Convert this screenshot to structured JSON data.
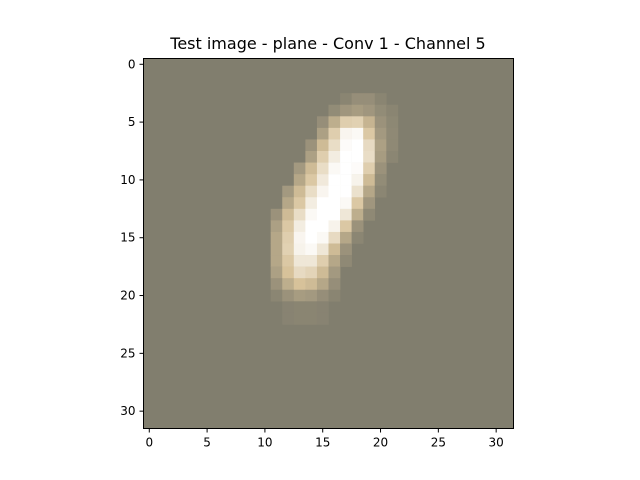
{
  "chart_data": {
    "type": "heatmap",
    "title": "Test image - plane - Conv 1 - Channel 5",
    "xlabel": "",
    "ylabel": "",
    "rows": 32,
    "cols": 32,
    "xlim": [
      -0.5,
      31.5
    ],
    "ylim": [
      31.5,
      -0.5
    ],
    "x_ticks": [
      0,
      5,
      10,
      15,
      20,
      25,
      30
    ],
    "y_ticks": [
      0,
      5,
      10,
      15,
      20,
      25,
      30
    ],
    "grid": false,
    "legend": "none",
    "background_value": 0.0,
    "colors": {
      "background": "#817e6e",
      "low": "#817e6e",
      "mid": "#d7c29a",
      "high": "#ffffff"
    },
    "nonzero_cells": [
      {
        "r": 3,
        "c": 17,
        "v": 0.05
      },
      {
        "r": 3,
        "c": 18,
        "v": 0.12
      },
      {
        "r": 3,
        "c": 19,
        "v": 0.12
      },
      {
        "r": 3,
        "c": 20,
        "v": 0.05
      },
      {
        "r": 4,
        "c": 16,
        "v": 0.1
      },
      {
        "r": 4,
        "c": 17,
        "v": 0.18
      },
      {
        "r": 4,
        "c": 18,
        "v": 0.22
      },
      {
        "r": 4,
        "c": 19,
        "v": 0.18
      },
      {
        "r": 4,
        "c": 20,
        "v": 0.1
      },
      {
        "r": 4,
        "c": 21,
        "v": 0.05
      },
      {
        "r": 5,
        "c": 15,
        "v": 0.12
      },
      {
        "r": 5,
        "c": 16,
        "v": 0.35
      },
      {
        "r": 5,
        "c": 17,
        "v": 0.6
      },
      {
        "r": 5,
        "c": 18,
        "v": 0.62
      },
      {
        "r": 5,
        "c": 19,
        "v": 0.4
      },
      {
        "r": 5,
        "c": 20,
        "v": 0.15
      },
      {
        "r": 5,
        "c": 21,
        "v": 0.07
      },
      {
        "r": 6,
        "c": 15,
        "v": 0.25
      },
      {
        "r": 6,
        "c": 16,
        "v": 0.6
      },
      {
        "r": 6,
        "c": 17,
        "v": 0.92
      },
      {
        "r": 6,
        "c": 18,
        "v": 0.95
      },
      {
        "r": 6,
        "c": 19,
        "v": 0.55
      },
      {
        "r": 6,
        "c": 20,
        "v": 0.2
      },
      {
        "r": 6,
        "c": 21,
        "v": 0.08
      },
      {
        "r": 7,
        "c": 14,
        "v": 0.15
      },
      {
        "r": 7,
        "c": 15,
        "v": 0.45
      },
      {
        "r": 7,
        "c": 16,
        "v": 0.72
      },
      {
        "r": 7,
        "c": 17,
        "v": 0.97
      },
      {
        "r": 7,
        "c": 18,
        "v": 1.0
      },
      {
        "r": 7,
        "c": 19,
        "v": 0.7
      },
      {
        "r": 7,
        "c": 20,
        "v": 0.25
      },
      {
        "r": 7,
        "c": 21,
        "v": 0.08
      },
      {
        "r": 8,
        "c": 14,
        "v": 0.25
      },
      {
        "r": 8,
        "c": 15,
        "v": 0.6
      },
      {
        "r": 8,
        "c": 16,
        "v": 0.85
      },
      {
        "r": 8,
        "c": 17,
        "v": 1.0
      },
      {
        "r": 8,
        "c": 18,
        "v": 1.0
      },
      {
        "r": 8,
        "c": 19,
        "v": 0.72
      },
      {
        "r": 8,
        "c": 20,
        "v": 0.22
      },
      {
        "r": 8,
        "c": 21,
        "v": 0.06
      },
      {
        "r": 9,
        "c": 13,
        "v": 0.2
      },
      {
        "r": 9,
        "c": 14,
        "v": 0.45
      },
      {
        "r": 9,
        "c": 15,
        "v": 0.72
      },
      {
        "r": 9,
        "c": 16,
        "v": 0.95
      },
      {
        "r": 9,
        "c": 17,
        "v": 1.0
      },
      {
        "r": 9,
        "c": 18,
        "v": 0.97
      },
      {
        "r": 9,
        "c": 19,
        "v": 0.6
      },
      {
        "r": 9,
        "c": 20,
        "v": 0.15
      },
      {
        "r": 10,
        "c": 13,
        "v": 0.3
      },
      {
        "r": 10,
        "c": 14,
        "v": 0.55
      },
      {
        "r": 10,
        "c": 15,
        "v": 0.82
      },
      {
        "r": 10,
        "c": 16,
        "v": 1.0
      },
      {
        "r": 10,
        "c": 17,
        "v": 1.0
      },
      {
        "r": 10,
        "c": 18,
        "v": 0.9
      },
      {
        "r": 10,
        "c": 19,
        "v": 0.45
      },
      {
        "r": 10,
        "c": 20,
        "v": 0.1
      },
      {
        "r": 11,
        "c": 12,
        "v": 0.2
      },
      {
        "r": 11,
        "c": 13,
        "v": 0.45
      },
      {
        "r": 11,
        "c": 14,
        "v": 0.72
      },
      {
        "r": 11,
        "c": 15,
        "v": 0.92
      },
      {
        "r": 11,
        "c": 16,
        "v": 1.0
      },
      {
        "r": 11,
        "c": 17,
        "v": 1.0
      },
      {
        "r": 11,
        "c": 18,
        "v": 0.75
      },
      {
        "r": 11,
        "c": 19,
        "v": 0.3
      },
      {
        "r": 11,
        "c": 20,
        "v": 0.06
      },
      {
        "r": 12,
        "c": 12,
        "v": 0.3
      },
      {
        "r": 12,
        "c": 13,
        "v": 0.55
      },
      {
        "r": 12,
        "c": 14,
        "v": 0.85
      },
      {
        "r": 12,
        "c": 15,
        "v": 1.0
      },
      {
        "r": 12,
        "c": 16,
        "v": 1.0
      },
      {
        "r": 12,
        "c": 17,
        "v": 0.95
      },
      {
        "r": 12,
        "c": 18,
        "v": 0.55
      },
      {
        "r": 12,
        "c": 19,
        "v": 0.18
      },
      {
        "r": 13,
        "c": 11,
        "v": 0.15
      },
      {
        "r": 13,
        "c": 12,
        "v": 0.45
      },
      {
        "r": 13,
        "c": 13,
        "v": 0.72
      },
      {
        "r": 13,
        "c": 14,
        "v": 0.95
      },
      {
        "r": 13,
        "c": 15,
        "v": 1.0
      },
      {
        "r": 13,
        "c": 16,
        "v": 1.0
      },
      {
        "r": 13,
        "c": 17,
        "v": 0.8
      },
      {
        "r": 13,
        "c": 18,
        "v": 0.35
      },
      {
        "r": 13,
        "c": 19,
        "v": 0.08
      },
      {
        "r": 14,
        "c": 11,
        "v": 0.25
      },
      {
        "r": 14,
        "c": 12,
        "v": 0.55
      },
      {
        "r": 14,
        "c": 13,
        "v": 0.85
      },
      {
        "r": 14,
        "c": 14,
        "v": 1.0
      },
      {
        "r": 14,
        "c": 15,
        "v": 1.0
      },
      {
        "r": 14,
        "c": 16,
        "v": 0.9
      },
      {
        "r": 14,
        "c": 17,
        "v": 0.55
      },
      {
        "r": 14,
        "c": 18,
        "v": 0.15
      },
      {
        "r": 15,
        "c": 11,
        "v": 0.3
      },
      {
        "r": 15,
        "c": 12,
        "v": 0.6
      },
      {
        "r": 15,
        "c": 13,
        "v": 0.92
      },
      {
        "r": 15,
        "c": 14,
        "v": 1.0
      },
      {
        "r": 15,
        "c": 15,
        "v": 0.95
      },
      {
        "r": 15,
        "c": 16,
        "v": 0.7
      },
      {
        "r": 15,
        "c": 17,
        "v": 0.3
      },
      {
        "r": 15,
        "c": 18,
        "v": 0.06
      },
      {
        "r": 16,
        "c": 11,
        "v": 0.3
      },
      {
        "r": 16,
        "c": 12,
        "v": 0.62
      },
      {
        "r": 16,
        "c": 13,
        "v": 0.9
      },
      {
        "r": 16,
        "c": 14,
        "v": 0.95
      },
      {
        "r": 16,
        "c": 15,
        "v": 0.8
      },
      {
        "r": 16,
        "c": 16,
        "v": 0.45
      },
      {
        "r": 16,
        "c": 17,
        "v": 0.15
      },
      {
        "r": 17,
        "c": 11,
        "v": 0.3
      },
      {
        "r": 17,
        "c": 12,
        "v": 0.55
      },
      {
        "r": 17,
        "c": 13,
        "v": 0.8
      },
      {
        "r": 17,
        "c": 14,
        "v": 0.8
      },
      {
        "r": 17,
        "c": 15,
        "v": 0.6
      },
      {
        "r": 17,
        "c": 16,
        "v": 0.3
      },
      {
        "r": 17,
        "c": 17,
        "v": 0.08
      },
      {
        "r": 18,
        "c": 11,
        "v": 0.25
      },
      {
        "r": 18,
        "c": 12,
        "v": 0.5
      },
      {
        "r": 18,
        "c": 13,
        "v": 0.7
      },
      {
        "r": 18,
        "c": 14,
        "v": 0.65
      },
      {
        "r": 18,
        "c": 15,
        "v": 0.45
      },
      {
        "r": 18,
        "c": 16,
        "v": 0.2
      },
      {
        "r": 19,
        "c": 11,
        "v": 0.15
      },
      {
        "r": 19,
        "c": 12,
        "v": 0.35
      },
      {
        "r": 19,
        "c": 13,
        "v": 0.5
      },
      {
        "r": 19,
        "c": 14,
        "v": 0.45
      },
      {
        "r": 19,
        "c": 15,
        "v": 0.3
      },
      {
        "r": 19,
        "c": 16,
        "v": 0.12
      },
      {
        "r": 20,
        "c": 11,
        "v": 0.06
      },
      {
        "r": 20,
        "c": 12,
        "v": 0.15
      },
      {
        "r": 20,
        "c": 13,
        "v": 0.22
      },
      {
        "r": 20,
        "c": 14,
        "v": 0.2
      },
      {
        "r": 20,
        "c": 15,
        "v": 0.12
      },
      {
        "r": 20,
        "c": 16,
        "v": 0.05
      },
      {
        "r": 21,
        "c": 12,
        "v": 0.04
      },
      {
        "r": 21,
        "c": 13,
        "v": 0.05
      },
      {
        "r": 21,
        "c": 14,
        "v": 0.05
      },
      {
        "r": 21,
        "c": 15,
        "v": 0.04
      },
      {
        "r": 22,
        "c": 12,
        "v": 0.04
      },
      {
        "r": 22,
        "c": 13,
        "v": 0.05
      },
      {
        "r": 22,
        "c": 14,
        "v": 0.05
      },
      {
        "r": 22,
        "c": 15,
        "v": 0.04
      }
    ]
  }
}
